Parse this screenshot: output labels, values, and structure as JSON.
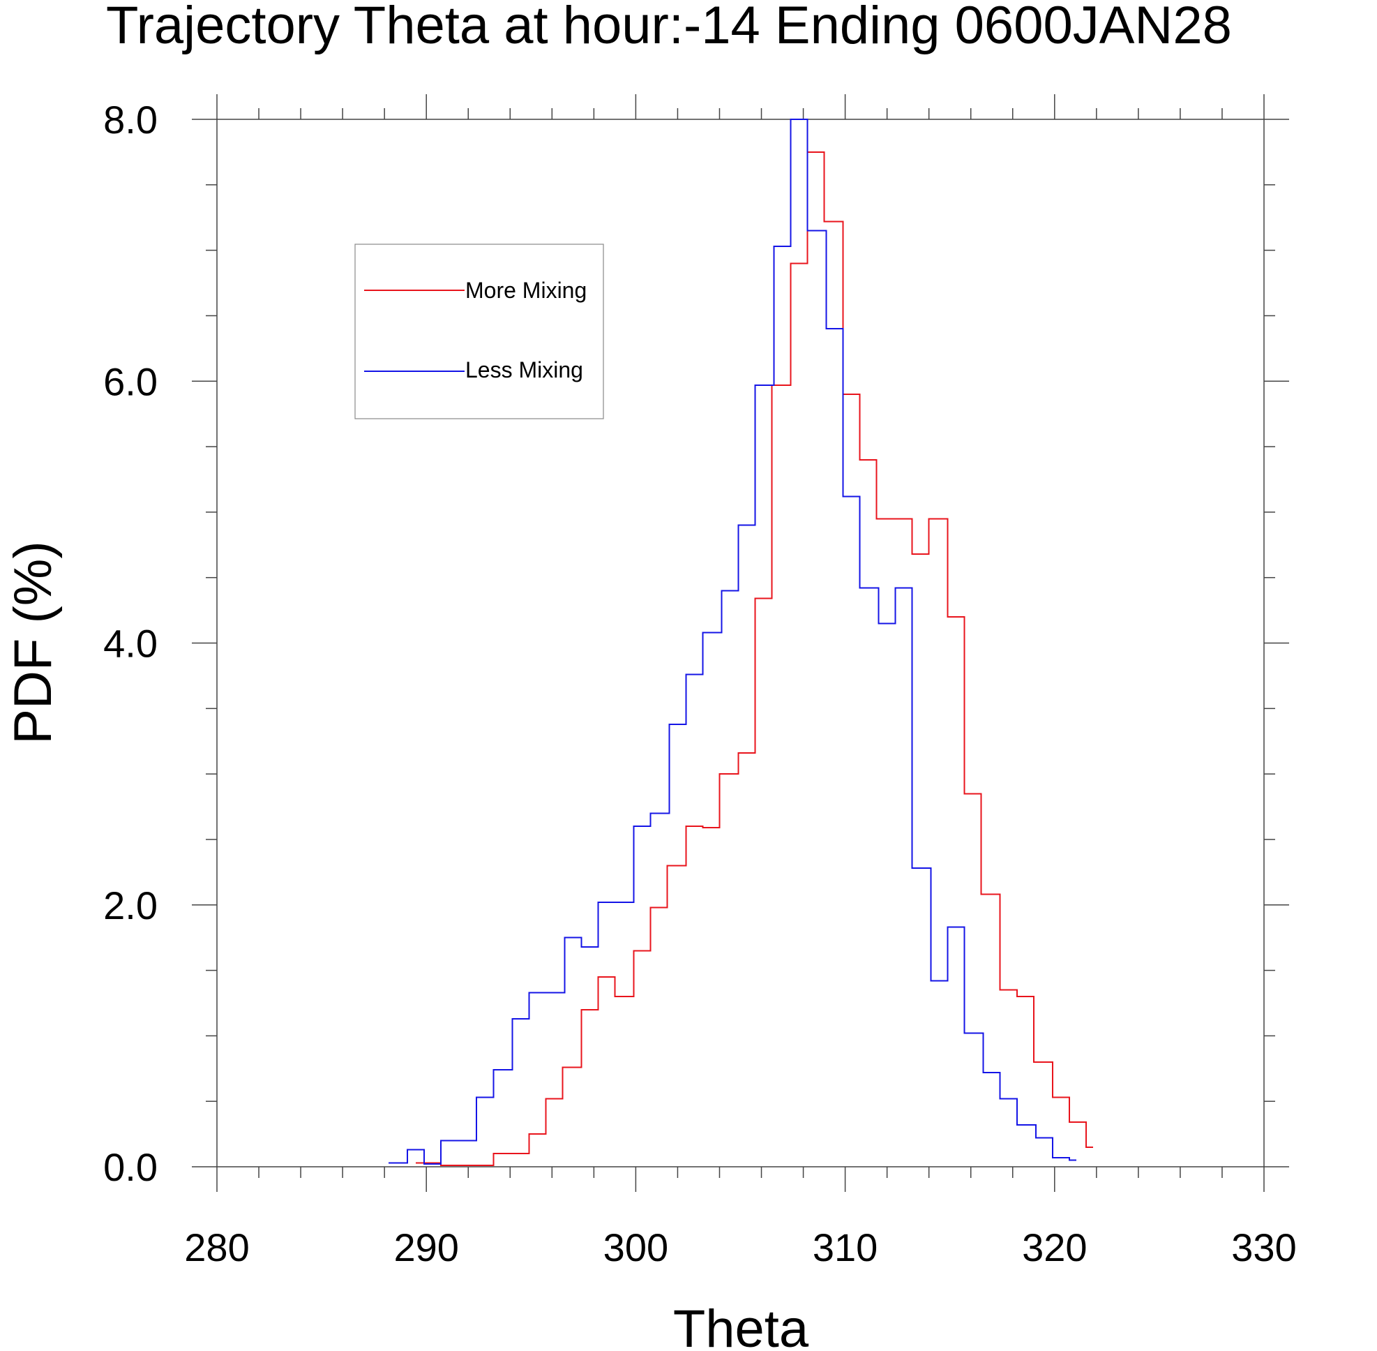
{
  "chart_data": {
    "type": "line",
    "title": "Trajectory Theta at hour:-14 Ending 0600JAN28",
    "xlabel": "Theta",
    "ylabel": "PDF (%)",
    "xlim": [
      280,
      330
    ],
    "ylim": [
      0,
      8
    ],
    "x_ticks": [
      280,
      290,
      300,
      310,
      320,
      330
    ],
    "x_tick_labels": [
      "280",
      "290",
      "300",
      "310",
      "320",
      "330"
    ],
    "y_ticks": [
      0,
      2,
      4,
      6,
      8
    ],
    "y_tick_labels": [
      "0.0",
      "2.0",
      "4.0",
      "6.0",
      "8.0"
    ],
    "grid": false,
    "legend_position": "upper-left",
    "bin_width": 0.833,
    "series": [
      {
        "name": "More Mixing",
        "color": "#e8141c",
        "bin_starts": [
          289.5,
          290.7,
          291.5,
          292.4,
          293.2,
          294.0,
          294.9,
          295.7,
          296.5,
          297.4,
          298.2,
          299.0,
          299.9,
          300.7,
          301.5,
          302.4,
          303.2,
          304.0,
          304.9,
          305.7,
          306.5,
          307.4,
          308.2,
          309.0,
          309.9,
          310.7,
          311.5,
          312.4,
          313.2,
          314.0,
          314.9,
          315.7,
          316.5,
          317.4,
          318.2,
          319.0,
          319.9,
          320.7,
          321.5
        ],
        "values": [
          0.03,
          0.01,
          0.01,
          0.01,
          0.1,
          0.1,
          0.25,
          0.52,
          0.76,
          1.2,
          1.45,
          1.3,
          1.65,
          1.98,
          2.3,
          2.6,
          2.59,
          3.0,
          3.16,
          4.34,
          5.97,
          6.9,
          7.75,
          7.22,
          5.9,
          5.4,
          4.95,
          4.95,
          4.68,
          4.95,
          4.2,
          2.85,
          2.08,
          1.35,
          1.3,
          0.8,
          0.53,
          0.34,
          0.15
        ]
      },
      {
        "name": "Less Mixing",
        "color": "#1414e6",
        "bin_starts": [
          288.2,
          289.1,
          289.9,
          290.7,
          291.6,
          292.4,
          293.2,
          294.1,
          294.9,
          295.7,
          296.6,
          297.4,
          298.2,
          299.1,
          299.9,
          300.7,
          301.6,
          302.4,
          303.2,
          304.1,
          304.9,
          305.7,
          306.6,
          307.4,
          308.2,
          309.1,
          309.9,
          310.7,
          311.6,
          312.4,
          313.2,
          314.1,
          314.9,
          315.7,
          316.6,
          317.4,
          318.2,
          319.1,
          319.9,
          320.7
        ],
        "values": [
          0.03,
          0.13,
          0.02,
          0.2,
          0.2,
          0.53,
          0.74,
          1.13,
          1.33,
          1.33,
          1.75,
          1.68,
          2.02,
          2.02,
          2.6,
          2.7,
          3.38,
          3.76,
          4.08,
          4.4,
          4.9,
          5.97,
          7.03,
          8.0,
          7.15,
          6.4,
          5.12,
          4.42,
          4.15,
          4.42,
          2.28,
          1.42,
          1.83,
          1.02,
          0.72,
          0.52,
          0.32,
          0.22,
          0.07,
          0.05
        ]
      }
    ]
  }
}
